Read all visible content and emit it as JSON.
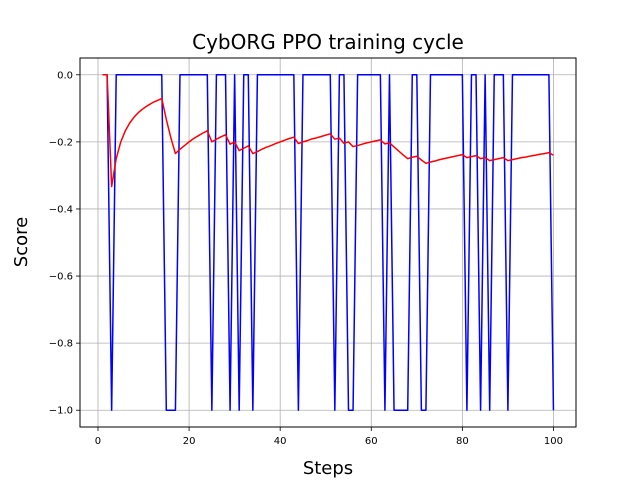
{
  "chart_data": {
    "type": "line",
    "title": "CybORG PPO training cycle",
    "xlabel": "Steps",
    "ylabel": "Score",
    "xlim": [
      -3.95,
      104.95
    ],
    "ylim": [
      -1.05,
      0.05
    ],
    "xticks": [
      0,
      20,
      40,
      60,
      80,
      100
    ],
    "yticks": [
      0.0,
      -0.2,
      -0.4,
      -0.6,
      -0.8,
      -1.0
    ],
    "xtick_labels": [
      "0",
      "20",
      "40",
      "60",
      "80",
      "100"
    ],
    "ytick_labels": [
      "0.0",
      "−0.2",
      "−0.4",
      "−0.6",
      "−0.8",
      "−1.0"
    ],
    "grid": true,
    "series": [
      {
        "color": "#0000ff",
        "x": [
          1,
          2,
          3,
          4,
          5,
          6,
          7,
          8,
          9,
          10,
          11,
          12,
          13,
          14,
          15,
          16,
          17,
          18,
          19,
          20,
          21,
          22,
          23,
          24,
          25,
          26,
          27,
          28,
          29,
          30,
          31,
          32,
          33,
          34,
          35,
          36,
          37,
          38,
          39,
          40,
          41,
          42,
          43,
          44,
          45,
          46,
          47,
          48,
          49,
          50,
          51,
          52,
          53,
          54,
          55,
          56,
          57,
          58,
          59,
          60,
          61,
          62,
          63,
          64,
          65,
          66,
          67,
          68,
          69,
          70,
          71,
          72,
          73,
          74,
          75,
          76,
          77,
          78,
          79,
          80,
          81,
          82,
          83,
          84,
          85,
          86,
          87,
          88,
          89,
          90,
          91,
          92,
          93,
          94,
          95,
          96,
          97,
          98,
          99,
          100
        ],
        "y": [
          0,
          0,
          -1,
          0,
          0,
          0,
          0,
          0,
          0,
          0,
          0,
          0,
          0,
          0,
          -1,
          -1,
          -1,
          0,
          0,
          0,
          0,
          0,
          0,
          0,
          -1,
          0,
          0,
          0,
          -1,
          0,
          -1,
          0,
          0,
          -1,
          0,
          0,
          0,
          0,
          0,
          0,
          0,
          0,
          0,
          -1,
          0,
          0,
          0,
          0,
          0,
          0,
          0,
          -1,
          0,
          0,
          -1,
          -1,
          0,
          0,
          0,
          0,
          0,
          0,
          -1,
          0,
          -1,
          -1,
          -1,
          -1,
          0,
          0,
          -1,
          -1,
          0,
          0,
          0,
          0,
          0,
          0,
          0,
          0,
          -1,
          0,
          0,
          -1,
          0,
          -1,
          0,
          0,
          0,
          -1,
          0,
          0,
          0,
          0,
          0,
          0,
          0,
          0,
          0,
          -1
        ]
      },
      {
        "color": "#ff0000",
        "x": [
          1,
          2,
          3,
          4,
          5,
          6,
          7,
          8,
          9,
          10,
          11,
          12,
          13,
          14,
          15,
          16,
          17,
          18,
          19,
          20,
          21,
          22,
          23,
          24,
          25,
          26,
          27,
          28,
          29,
          30,
          31,
          32,
          33,
          34,
          35,
          36,
          37,
          38,
          39,
          40,
          41,
          42,
          43,
          44,
          45,
          46,
          47,
          48,
          49,
          50,
          51,
          52,
          53,
          54,
          55,
          56,
          57,
          58,
          59,
          60,
          61,
          62,
          63,
          64,
          65,
          66,
          67,
          68,
          69,
          70,
          71,
          72,
          73,
          74,
          75,
          76,
          77,
          78,
          79,
          80,
          81,
          82,
          83,
          84,
          85,
          86,
          87,
          88,
          89,
          90,
          91,
          92,
          93,
          94,
          95,
          96,
          97,
          98,
          99,
          100
        ],
        "y": [
          0,
          0,
          -0.333,
          -0.25,
          -0.2,
          -0.167,
          -0.143,
          -0.125,
          -0.111,
          -0.1,
          -0.091,
          -0.083,
          -0.077,
          -0.071,
          -0.133,
          -0.188,
          -0.235,
          -0.222,
          -0.211,
          -0.2,
          -0.19,
          -0.182,
          -0.174,
          -0.167,
          -0.2,
          -0.192,
          -0.185,
          -0.179,
          -0.207,
          -0.2,
          -0.226,
          -0.219,
          -0.212,
          -0.235,
          -0.229,
          -0.222,
          -0.216,
          -0.211,
          -0.205,
          -0.2,
          -0.195,
          -0.19,
          -0.186,
          -0.205,
          -0.2,
          -0.196,
          -0.191,
          -0.188,
          -0.184,
          -0.18,
          -0.176,
          -0.192,
          -0.189,
          -0.204,
          -0.2,
          -0.214,
          -0.211,
          -0.207,
          -0.203,
          -0.2,
          -0.197,
          -0.194,
          -0.206,
          -0.203,
          -0.215,
          -0.227,
          -0.239,
          -0.25,
          -0.246,
          -0.243,
          -0.254,
          -0.264,
          -0.26,
          -0.257,
          -0.253,
          -0.25,
          -0.247,
          -0.244,
          -0.241,
          -0.238,
          -0.247,
          -0.244,
          -0.241,
          -0.25,
          -0.247,
          -0.256,
          -0.253,
          -0.25,
          -0.247,
          -0.256,
          -0.253,
          -0.25,
          -0.247,
          -0.245,
          -0.242,
          -0.24,
          -0.237,
          -0.235,
          -0.232,
          -0.24
        ]
      }
    ]
  }
}
